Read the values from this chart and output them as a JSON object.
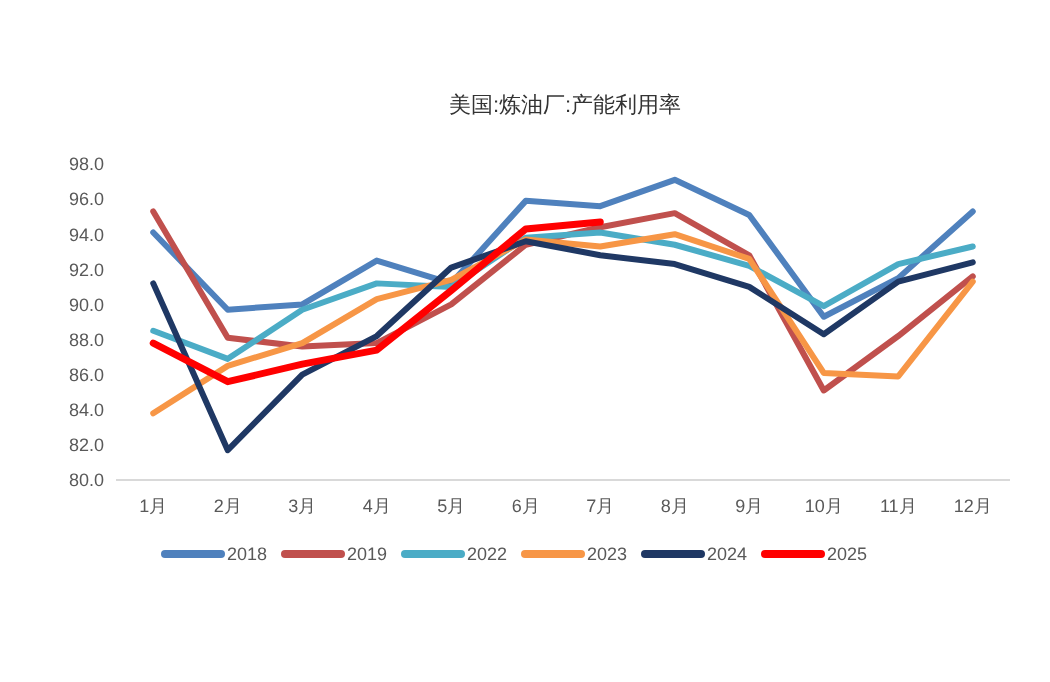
{
  "chart_data": {
    "type": "line",
    "title": "美国:炼油厂:产能利用率",
    "categories": [
      "1月",
      "2月",
      "3月",
      "4月",
      "5月",
      "6月",
      "7月",
      "8月",
      "9月",
      "10月",
      "11月",
      "12月"
    ],
    "series": [
      {
        "name": "2018",
        "color": "#4f81bd",
        "values": [
          94.1,
          89.7,
          90.0,
          92.5,
          91.2,
          95.9,
          95.6,
          97.1,
          95.1,
          89.3,
          91.5,
          95.3
        ]
      },
      {
        "name": "2019",
        "color": "#c0504d",
        "values": [
          95.3,
          88.1,
          87.6,
          87.8,
          90.0,
          93.4,
          94.4,
          95.2,
          92.8,
          85.1,
          88.2,
          91.6
        ]
      },
      {
        "name": "2022",
        "color": "#4bacc6",
        "values": [
          88.5,
          86.9,
          89.7,
          91.2,
          91.0,
          93.8,
          94.1,
          93.4,
          92.2,
          89.9,
          92.3,
          93.3
        ]
      },
      {
        "name": "2023",
        "color": "#f79646",
        "values": [
          83.8,
          86.5,
          87.8,
          90.3,
          91.4,
          93.7,
          93.3,
          94.0,
          92.6,
          86.1,
          85.9,
          91.3
        ]
      },
      {
        "name": "2024",
        "color": "#1f3864",
        "values": [
          91.2,
          81.7,
          86.0,
          88.2,
          92.1,
          93.6,
          92.8,
          92.3,
          91.0,
          88.3,
          91.3,
          92.4
        ]
      },
      {
        "name": "2025",
        "color": "#ff0000",
        "values": [
          87.8,
          85.6,
          86.6,
          87.4,
          90.8,
          94.3,
          94.7,
          null,
          null,
          null,
          null,
          null
        ]
      }
    ],
    "ylim": [
      80,
      98
    ],
    "yticks": [
      {
        "value": 80,
        "label": "80.0"
      },
      {
        "value": 82,
        "label": "82.0"
      },
      {
        "value": 84,
        "label": "84.0"
      },
      {
        "value": 86,
        "label": "86.0"
      },
      {
        "value": 88,
        "label": "88.0"
      },
      {
        "value": 90,
        "label": "90.0"
      },
      {
        "value": 92,
        "label": "92.0"
      },
      {
        "value": 94,
        "label": "94.0"
      },
      {
        "value": 96,
        "label": "96.0"
      },
      {
        "value": 98,
        "label": "98.0"
      }
    ],
    "grid": false,
    "legend": "bottom",
    "marker": "none",
    "line_style": "solid"
  }
}
